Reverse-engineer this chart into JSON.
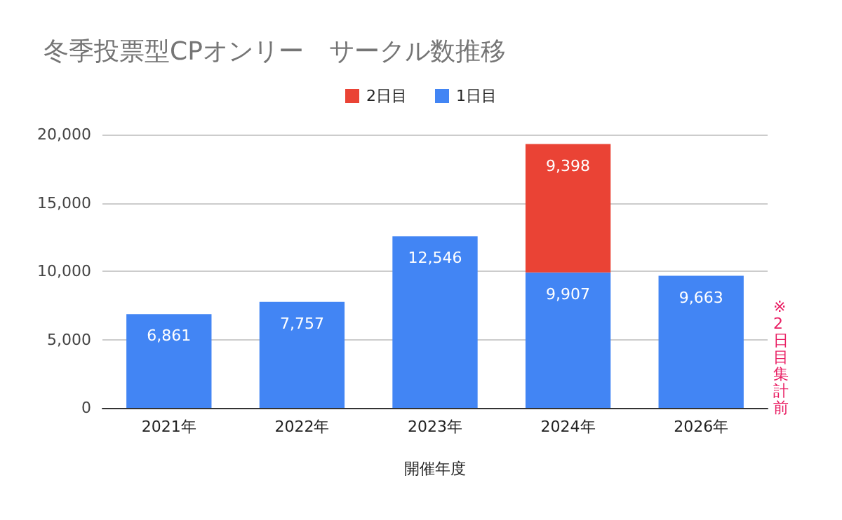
{
  "chart_data": {
    "type": "bar",
    "title": "冬季投票型CPオンリー　サークル数推移",
    "xlabel": "開催年度",
    "categories": [
      "2021年",
      "2022年",
      "2023年",
      "2024年",
      "2026年"
    ],
    "stacked": true,
    "series": [
      {
        "name": "1日目",
        "color": "#4285f4",
        "values": [
          6861,
          7757,
          12546,
          9907,
          9663
        ],
        "value_labels": [
          "6,861",
          "7,757",
          "12,546",
          "9,907",
          "9,663"
        ]
      },
      {
        "name": "2日目",
        "color": "#ea4335",
        "values": [
          null,
          null,
          null,
          9398,
          null
        ],
        "value_labels": [
          null,
          null,
          null,
          "9,398",
          null
        ]
      }
    ],
    "ylim": [
      0,
      20000
    ],
    "yticks": [
      {
        "value": 0,
        "label": "0"
      },
      {
        "value": 5000,
        "label": "5,000"
      },
      {
        "value": 10000,
        "label": "10,000"
      },
      {
        "value": 15000,
        "label": "15,000"
      },
      {
        "value": 20000,
        "label": "20,000"
      }
    ],
    "grid": "y",
    "legend": "top",
    "annotations": [
      "※2日目集計前"
    ]
  }
}
